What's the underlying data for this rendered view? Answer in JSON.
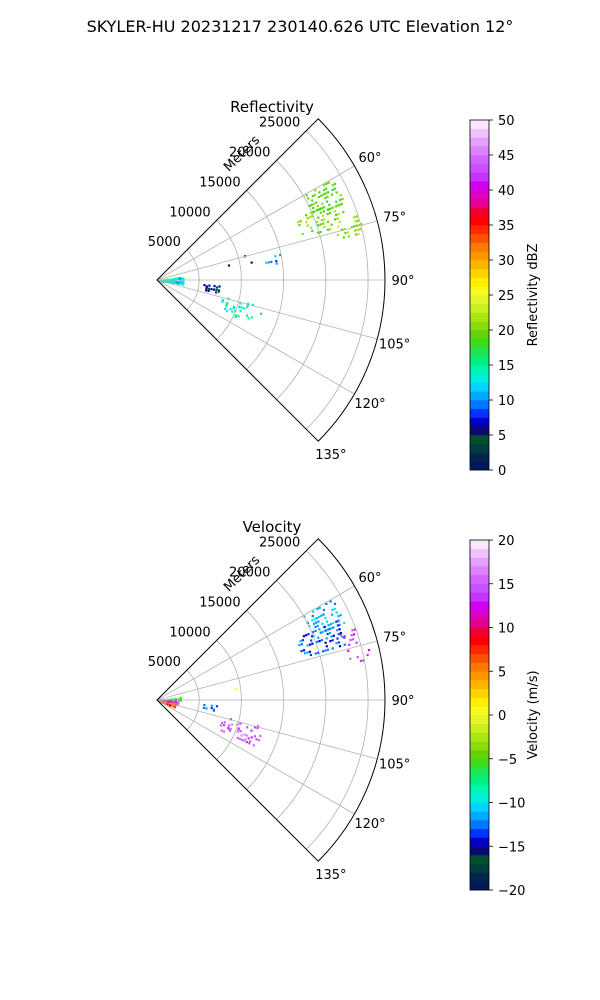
{
  "suptitle": "SKYLER-HU  20231217  230140.626 UTC Elevation 12°",
  "chart_data": [
    {
      "type": "polar-sector",
      "title": "Reflectivity",
      "field": "reflectivity",
      "r_label": "Meters",
      "r_ticks": [
        5000,
        10000,
        15000,
        20000,
        25000
      ],
      "r_tick_labels": [
        "5000",
        "10000",
        "15000",
        "20000",
        "25000"
      ],
      "r_max": 27000,
      "theta_range_deg": [
        45,
        135
      ],
      "theta_ticks": [
        60,
        75,
        90,
        105,
        120,
        135
      ],
      "theta_tick_labels": [
        "60°",
        "75°",
        "90°",
        "105°",
        "120°",
        "135°"
      ],
      "grid": true,
      "colorbar": {
        "label": "Reflectivity dBZ",
        "vmin": 0,
        "vmax": 50,
        "ticks": [
          0,
          5,
          10,
          15,
          20,
          25,
          30,
          35,
          40,
          45,
          50
        ],
        "tick_labels": [
          "0",
          "5",
          "10",
          "15",
          "20",
          "25",
          "30",
          "35",
          "40",
          "45",
          "50"
        ],
        "colors": [
          "#001a5c",
          "#00244d",
          "#003d3d",
          "#005030",
          "#0a0a70",
          "#0000c8",
          "#0033ff",
          "#0077ff",
          "#00aaff",
          "#00d4ff",
          "#00f0e0",
          "#00f5b4",
          "#00f080",
          "#1ee650",
          "#3cdc1e",
          "#64d20a",
          "#8cdc0a",
          "#aae614",
          "#c8f01e",
          "#e6f528",
          "#fafa1e",
          "#fff000",
          "#ffd200",
          "#ffb400",
          "#ff9600",
          "#ff7800",
          "#ff5000",
          "#ff2800",
          "#ff0000",
          "#f00032",
          "#e6008c",
          "#dc00c8",
          "#d200f0",
          "#c832ff",
          "#c850ff",
          "#d264ff",
          "#dc82ff",
          "#e6a0ff",
          "#f0c3ff",
          "#fae6ff"
        ]
      },
      "echo_clusters": [
        {
          "az": [
            60,
            68
          ],
          "range": [
            20000,
            24000
          ],
          "value": 19,
          "density": 0.5
        },
        {
          "az": [
            66,
            74
          ],
          "range": [
            18000,
            23500
          ],
          "value": 20,
          "density": 0.4
        },
        {
          "az": [
            72,
            78
          ],
          "range": [
            22000,
            25500
          ],
          "value": 21,
          "density": 0.3
        },
        {
          "az": [
            74,
            80
          ],
          "range": [
            8000,
            12000
          ],
          "value": 4,
          "density": 0.05
        },
        {
          "az": [
            78,
            82
          ],
          "range": [
            13000,
            15000
          ],
          "value": 10,
          "density": 0.1
        },
        {
          "az": [
            82,
            98
          ],
          "range": [
            300,
            3200
          ],
          "value": 14,
          "density": 0.45
        },
        {
          "az": [
            85,
            95
          ],
          "range": [
            2000,
            2800
          ],
          "value": 10,
          "density": 0.15
        },
        {
          "az": [
            95,
            102
          ],
          "range": [
            5500,
            7500
          ],
          "value": 6,
          "density": 0.25
        },
        {
          "az": [
            104,
            115
          ],
          "range": [
            8000,
            13000
          ],
          "value": 14,
          "density": 0.2
        }
      ]
    },
    {
      "type": "polar-sector",
      "title": "Velocity",
      "field": "velocity",
      "r_label": "Meters",
      "r_ticks": [
        5000,
        10000,
        15000,
        20000,
        25000
      ],
      "r_tick_labels": [
        "5000",
        "10000",
        "15000",
        "20000",
        "25000"
      ],
      "r_max": 27000,
      "theta_range_deg": [
        45,
        135
      ],
      "theta_ticks": [
        60,
        75,
        90,
        105,
        120,
        135
      ],
      "theta_tick_labels": [
        "60°",
        "75°",
        "90°",
        "105°",
        "120°",
        "135°"
      ],
      "grid": true,
      "colorbar": {
        "label": "Velocity (m/s)",
        "vmin": -20,
        "vmax": 20,
        "ticks": [
          -20,
          -15,
          -10,
          -5,
          0,
          5,
          10,
          15,
          20
        ],
        "tick_labels": [
          "−20",
          "−15",
          "−10",
          "−5",
          "0",
          "5",
          "10",
          "15",
          "20"
        ],
        "colors": [
          "#001a5c",
          "#00244d",
          "#003d3d",
          "#005030",
          "#0a0a70",
          "#0000c8",
          "#0033ff",
          "#0077ff",
          "#00aaff",
          "#00d4ff",
          "#00f0e0",
          "#00f5b4",
          "#00f080",
          "#1ee650",
          "#3cdc1e",
          "#64d20a",
          "#8cdc0a",
          "#aae614",
          "#c8f01e",
          "#e6f528",
          "#fafa1e",
          "#fff000",
          "#ffd200",
          "#ffb400",
          "#ff9600",
          "#ff7800",
          "#ff5000",
          "#ff2800",
          "#ff0000",
          "#f00032",
          "#e6008c",
          "#dc00c8",
          "#d200f0",
          "#c832ff",
          "#c850ff",
          "#d264ff",
          "#dc82ff",
          "#e6a0ff",
          "#f0c3ff",
          "#fae6ff"
        ]
      },
      "echo_clusters": [
        {
          "az": [
            60,
            68
          ],
          "range": [
            20000,
            24000
          ],
          "value": -11,
          "density": 0.45
        },
        {
          "az": [
            66,
            74
          ],
          "range": [
            18000,
            23500
          ],
          "value": -13,
          "density": 0.4
        },
        {
          "az": [
            70,
            74
          ],
          "range": [
            23000,
            25000
          ],
          "value": 13,
          "density": 0.2
        },
        {
          "az": [
            74,
            80
          ],
          "range": [
            23000,
            26000
          ],
          "value": 14,
          "density": 0.25
        },
        {
          "az": [
            80,
            82
          ],
          "range": [
            8500,
            10000
          ],
          "value": 0,
          "density": 0.1
        },
        {
          "az": [
            82,
            90
          ],
          "range": [
            300,
            3000
          ],
          "value": -6,
          "density": 0.45
        },
        {
          "az": [
            90,
            100
          ],
          "range": [
            300,
            2500
          ],
          "value": 14,
          "density": 0.45
        },
        {
          "az": [
            100,
            112
          ],
          "range": [
            300,
            2200
          ],
          "value": 7,
          "density": 0.45
        },
        {
          "az": [
            95,
            102
          ],
          "range": [
            5500,
            7500
          ],
          "value": -12,
          "density": 0.2
        },
        {
          "az": [
            104,
            115
          ],
          "range": [
            8000,
            13000
          ],
          "value": 15,
          "density": 0.25
        }
      ]
    }
  ]
}
